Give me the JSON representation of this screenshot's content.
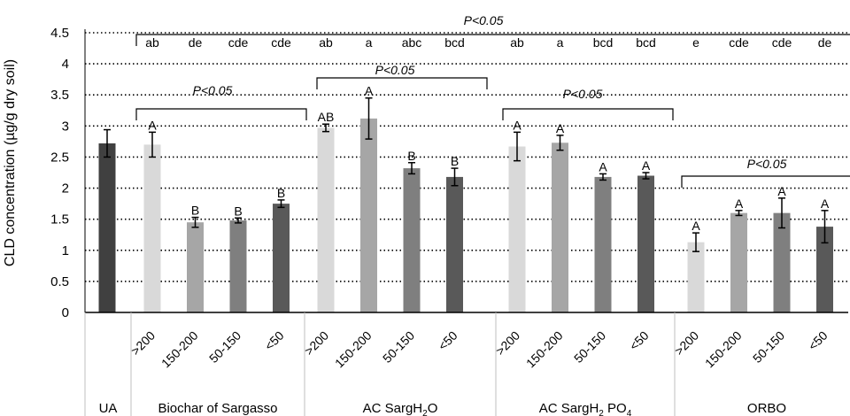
{
  "chart_data": {
    "type": "bar",
    "ylabel": "CLD concentration (µg/g dry soil)",
    "ylim": [
      0,
      4.5
    ],
    "yticks": [
      "0",
      "0.5",
      "1",
      "1.5",
      "2",
      "2.5",
      "3",
      "3.5",
      "4",
      "4.5"
    ],
    "grid": "dotted horizontal",
    "groups": [
      {
        "label": "UA",
        "label_parts": [
          "UA"
        ],
        "bars": [
          {
            "cat": "",
            "value": 2.72,
            "err": 0.22,
            "color": "#404040",
            "letter": "",
            "top_letter": ""
          }
        ]
      },
      {
        "label": "Biochar of Sargasso",
        "label_parts": [
          "Biochar of Sargasso"
        ],
        "bars": [
          {
            "cat": ">200",
            "value": 2.7,
            "err": 0.2,
            "color": "#d9d9d9",
            "letter": "A",
            "top_letter": "ab"
          },
          {
            "cat": "150-200",
            "value": 1.45,
            "err": 0.08,
            "color": "#a6a6a6",
            "letter": "B",
            "top_letter": "de"
          },
          {
            "cat": "50-150",
            "value": 1.48,
            "err": 0.04,
            "color": "#7f7f7f",
            "letter": "B",
            "top_letter": "cde"
          },
          {
            "cat": "<50",
            "value": 1.75,
            "err": 0.06,
            "color": "#595959",
            "letter": "B",
            "top_letter": "cde"
          }
        ]
      },
      {
        "label": "AC SargH2O",
        "label_parts": [
          "AC SargH",
          "2",
          "O"
        ],
        "bars": [
          {
            "cat": ">200",
            "value": 2.97,
            "err": 0.06,
            "color": "#d9d9d9",
            "letter": "AB",
            "top_letter": "ab"
          },
          {
            "cat": "150-200",
            "value": 3.12,
            "err": 0.33,
            "color": "#a6a6a6",
            "letter": "A",
            "top_letter": "a"
          },
          {
            "cat": "50-150",
            "value": 2.32,
            "err": 0.09,
            "color": "#7f7f7f",
            "letter": "B",
            "top_letter": "abc"
          },
          {
            "cat": "<50",
            "value": 2.18,
            "err": 0.14,
            "color": "#595959",
            "letter": "B",
            "top_letter": "bcd"
          }
        ]
      },
      {
        "label": "AC SargH2PO4",
        "label_parts": [
          "AC SargH",
          "2",
          " PO",
          "4"
        ],
        "bars": [
          {
            "cat": ">200",
            "value": 2.67,
            "err": 0.23,
            "color": "#d9d9d9",
            "letter": "A",
            "top_letter": "ab"
          },
          {
            "cat": "150-200",
            "value": 2.73,
            "err": 0.12,
            "color": "#a6a6a6",
            "letter": "A",
            "top_letter": "a"
          },
          {
            "cat": "50-150",
            "value": 2.18,
            "err": 0.05,
            "color": "#7f7f7f",
            "letter": "A",
            "top_letter": "bcd"
          },
          {
            "cat": "<50",
            "value": 2.2,
            "err": 0.05,
            "color": "#595959",
            "letter": "A",
            "top_letter": "bcd"
          }
        ]
      },
      {
        "label": "ORBO",
        "label_parts": [
          "ORBO"
        ],
        "bars": [
          {
            "cat": ">200",
            "value": 1.13,
            "err": 0.15,
            "color": "#d9d9d9",
            "letter": "A",
            "top_letter": "e"
          },
          {
            "cat": "150-200",
            "value": 1.6,
            "err": 0.04,
            "color": "#a6a6a6",
            "letter": "A",
            "top_letter": "cde"
          },
          {
            "cat": "50-150",
            "value": 1.6,
            "err": 0.24,
            "color": "#7f7f7f",
            "letter": "A",
            "top_letter": "cde"
          },
          {
            "cat": "<50",
            "value": 1.38,
            "err": 0.26,
            "color": "#595959",
            "letter": "A",
            "top_letter": "de"
          }
        ]
      }
    ],
    "significance": [
      {
        "text": "P<0.05",
        "span": "all-treatments",
        "level": 4.45
      },
      {
        "text": "P<0.05",
        "span": "AC SargH2O",
        "level": 3.75
      },
      {
        "text": "P<0.05",
        "span": "Biochar of Sargasso",
        "level": 3.3
      },
      {
        "text": "P<0.05",
        "span": "AC SargH2PO4",
        "level": 3.3
      },
      {
        "text": "P<0.05",
        "span": "ORBO",
        "level": 2.2
      }
    ]
  }
}
